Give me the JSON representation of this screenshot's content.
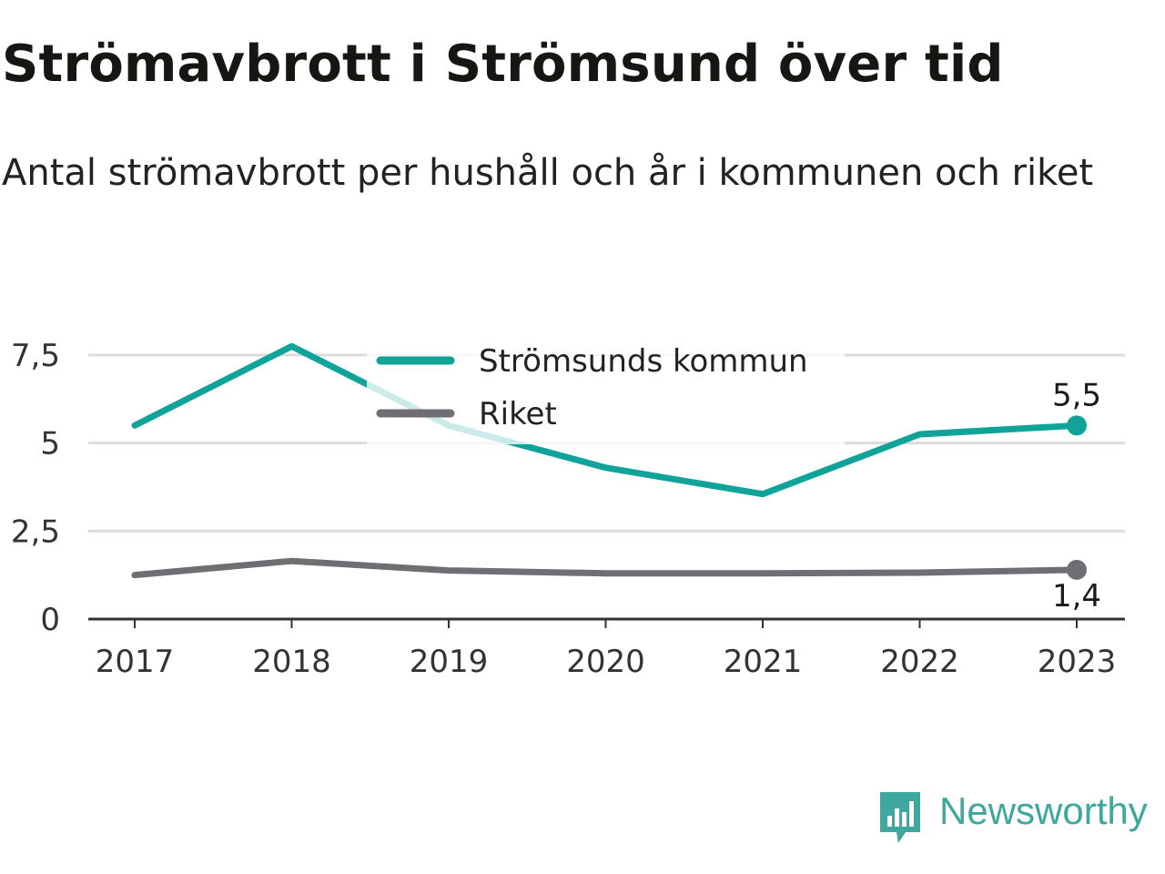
{
  "header": {
    "title": "Strömavbrott i Strömsund över tid",
    "subtitle": "Antal strömavbrott per hushåll och år i kommunen och riket"
  },
  "brand": {
    "name": "Newsworthy",
    "icon": "newsworthy-logo-icon",
    "color": "#3ea79e"
  },
  "chart_data": {
    "type": "line",
    "title": "Strömavbrott i Strömsund över tid",
    "subtitle": "Antal strömavbrott per hushåll och år i kommunen och riket",
    "xlabel": "",
    "ylabel": "",
    "x": [
      "2017",
      "2018",
      "2019",
      "2020",
      "2021",
      "2022",
      "2023"
    ],
    "ylim": [
      0,
      7.5
    ],
    "yticks": [
      0,
      2.5,
      5,
      7.5
    ],
    "ytick_labels": [
      "0",
      "2,5",
      "5",
      "7,5"
    ],
    "grid": true,
    "legend_position": "top-center",
    "series": [
      {
        "name": "Strömsunds kommun",
        "color": "#0fa39a",
        "values": [
          5.5,
          7.75,
          5.5,
          4.3,
          3.55,
          5.25,
          5.5
        ],
        "end_label": "5,5"
      },
      {
        "name": "Riket",
        "color": "#6e6e73",
        "values": [
          1.25,
          1.65,
          1.38,
          1.3,
          1.3,
          1.32,
          1.4
        ],
        "end_label": "1,4"
      }
    ]
  }
}
